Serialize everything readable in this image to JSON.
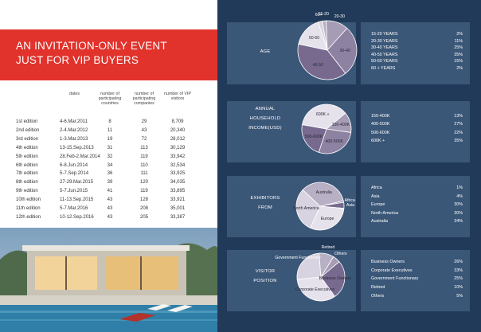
{
  "event": {
    "title_line1": "AN INVITATION-ONLY EVENT",
    "title_line2": "JUST FOR VIP BUYERS"
  },
  "table": {
    "headers": [
      "dates",
      "number of participating countries",
      "number of participating companies",
      "number of VIP visitors"
    ],
    "rows": [
      [
        "1st edition",
        "4-6.Mar.2011",
        "8",
        "29",
        "8,709"
      ],
      [
        "2nd edition",
        "2-4.Mar.2012",
        "11",
        "43",
        "20,340"
      ],
      [
        "3rd edition",
        "1-3.Mar.2013",
        "19",
        "72",
        "28,012"
      ],
      [
        "4th edition",
        "13-15.Sep.2013",
        "31",
        "113",
        "30,129"
      ],
      [
        "5th edition",
        "28.Feb-2.Mar.2014",
        "32",
        "119",
        "33,942"
      ],
      [
        "6th edition",
        "6-8.Jun.2014",
        "34",
        "110",
        "32,534"
      ],
      [
        "7th edition",
        "5-7.Sep.2014",
        "36",
        "111",
        "33,925"
      ],
      [
        "8th edition",
        "27-29.Mar.2015",
        "39",
        "120",
        "34,035"
      ],
      [
        "9th edition",
        "5-7.Jun.2015",
        "41",
        "119",
        "33,895"
      ],
      [
        "10th edition",
        "11-13.Sep.2015",
        "43",
        "128",
        "33,921"
      ],
      [
        "11th edition",
        "5-7.Mar.2016",
        "43",
        "208",
        "35,001"
      ],
      [
        "12th edition",
        "10-12.Sep.2016",
        "43",
        "205",
        "33,387"
      ]
    ]
  },
  "colors": {
    "banner": "#e1322c",
    "page_bg": "#223a59",
    "panel_bg": "#3b5778",
    "slice_palette": [
      "#b8b0c4",
      "#a69cb6",
      "#8e82a3",
      "#776a8e",
      "#e6e2ec",
      "#d8d3e0"
    ]
  },
  "chart_data": [
    {
      "type": "pie",
      "title": "AGE",
      "categories": [
        "15-20 YEARS",
        "20-30 YEARS",
        "30-40 YEARS",
        "40-50 YEARS",
        "50-60 YEARS",
        "60 + YEARS"
      ],
      "slice_labels": [
        "15-20",
        "20-30",
        "30-40",
        "40-50",
        "50-60",
        "60+"
      ],
      "values": [
        2,
        11,
        25,
        35,
        15,
        2
      ],
      "legend_values": [
        "2%",
        "11%",
        "25%",
        "35%",
        "15%",
        "2%"
      ],
      "inside": [
        false,
        false,
        true,
        true,
        true,
        false
      ]
    },
    {
      "type": "pie",
      "title_lines": [
        "ANNUAL",
        "HOUSEHOLD",
        "INCOME(USD)"
      ],
      "categories": [
        "150-400K",
        "400-500K",
        "500-600K",
        "600K +"
      ],
      "slice_labels": [
        "150-400K",
        "400-500K",
        "500-600K",
        "600K +"
      ],
      "values": [
        13,
        27,
        22,
        35
      ],
      "legend_values": [
        "13%",
        "27%",
        "22%",
        "35%"
      ],
      "inside": [
        true,
        true,
        true,
        true
      ]
    },
    {
      "type": "pie",
      "title_lines": [
        "EXHIBITORS",
        "FROM"
      ],
      "categories": [
        "Africa",
        "Asia",
        "Europe",
        "North America",
        "Australia"
      ],
      "slice_labels": [
        "Africa",
        "Asia",
        "Europe",
        "North America",
        "Australia"
      ],
      "values": [
        1,
        4,
        30,
        30,
        34
      ],
      "legend_values": [
        "1%",
        "4%",
        "30%",
        "30%",
        "34%"
      ],
      "inside": [
        false,
        false,
        true,
        true,
        true
      ]
    },
    {
      "type": "pie",
      "title_lines": [
        "VISITOR",
        "POSITION"
      ],
      "categories": [
        "Business Owners",
        "Corporate Executives",
        "Government Functionary",
        "Retired",
        "Others"
      ],
      "slice_labels": [
        "Business Owners",
        "Corporate Executives",
        "Government Functionary",
        "Retired",
        "Others"
      ],
      "values": [
        26,
        33,
        25,
        10,
        5
      ],
      "legend_values": [
        "26%",
        "33%",
        "25%",
        "10%",
        "5%"
      ],
      "inside": [
        true,
        true,
        false,
        false,
        false
      ]
    }
  ]
}
